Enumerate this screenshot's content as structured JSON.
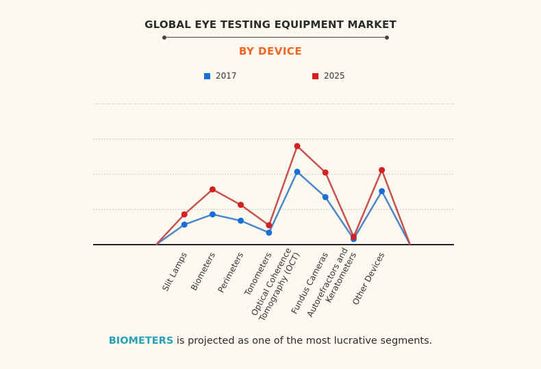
{
  "header": {
    "title": "GLOBAL EYE TESTING EQUIPMENT MARKET",
    "subtitle": "BY DEVICE"
  },
  "footer": {
    "highlight": "BIOMETERS",
    "text": " is projected as one of the most lucrative segments."
  },
  "colors": {
    "series_2017": "#4a86c8",
    "series_2025": "#c8504f",
    "marker_2017": "#1a6fd6",
    "marker_2025": "#d42020",
    "highlight": "#2a9fb8",
    "subtitle": "#f26522"
  },
  "chart_data": {
    "type": "line",
    "title": "GLOBAL EYE TESTING EQUIPMENT MARKET",
    "subtitle": "BY DEVICE",
    "xlabel": "",
    "ylabel": "",
    "ylim": [
      0,
      4
    ],
    "grid": true,
    "legend": "top-center",
    "categories": [
      "Slit Lamps",
      "Biometers",
      "Perimeters",
      "Tonometers",
      "Optical Coherence\nTomography (OCT)",
      "Fundus Cameras",
      "Autorefractors and\nKeratometers",
      "Other Devices"
    ],
    "series": [
      {
        "name": "2017",
        "values": [
          0.57,
          0.86,
          0.68,
          0.34,
          2.07,
          1.35,
          0.16,
          1.52
        ]
      },
      {
        "name": "2025",
        "values": [
          0.86,
          1.57,
          1.13,
          0.55,
          2.8,
          2.05,
          0.22,
          2.12
        ]
      }
    ]
  }
}
